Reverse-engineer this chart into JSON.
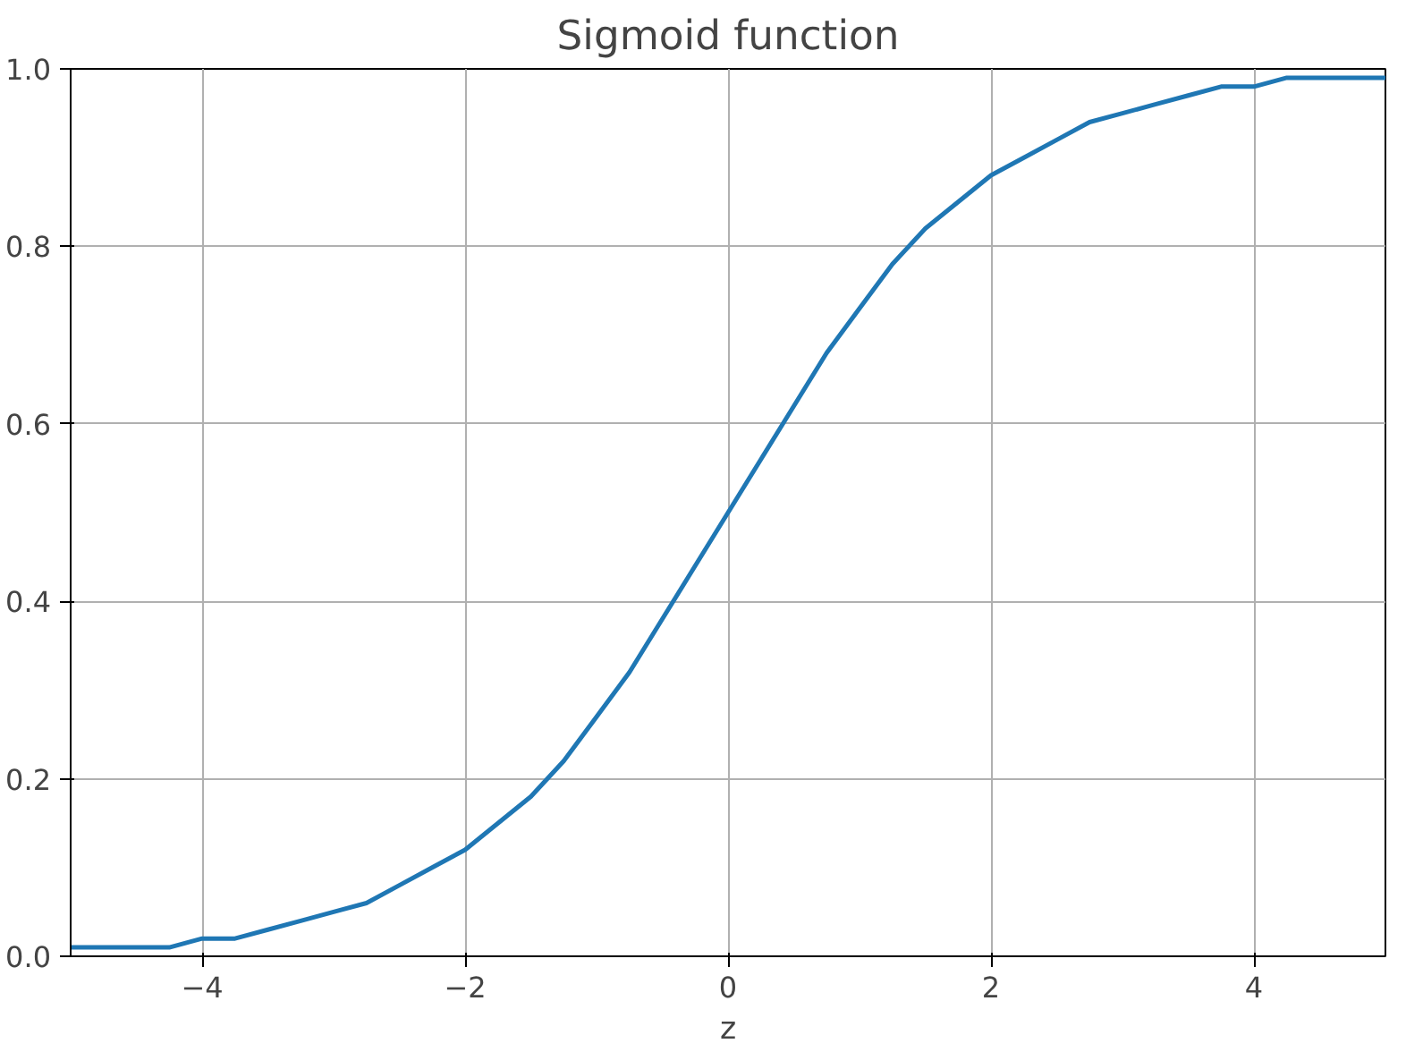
{
  "chart_data": {
    "type": "line",
    "title": "Sigmoid function",
    "xlabel": "z",
    "x": [
      -5,
      -4.75,
      -4.5,
      -4.25,
      -4,
      -3.75,
      -3.5,
      -3.25,
      -3,
      -2.75,
      -2.5,
      -2.25,
      -2,
      -1.75,
      -1.5,
      -1.25,
      -1,
      -0.75,
      -0.5,
      -0.25,
      0,
      0.25,
      0.5,
      0.75,
      1,
      1.25,
      1.5,
      1.75,
      2,
      2.25,
      2.5,
      2.75,
      3,
      3.25,
      3.5,
      3.75,
      4,
      4.25,
      4.5,
      4.75,
      5
    ],
    "series": [
      {
        "color": "#1f77b4",
        "values": [
          0.01,
          0.01,
          0.01,
          0.01,
          0.02,
          0.02,
          0.03,
          0.04,
          0.05,
          0.06,
          0.08,
          0.1,
          0.12,
          0.15,
          0.18,
          0.22,
          0.27,
          0.32,
          0.38,
          0.44,
          0.5,
          0.56,
          0.62,
          0.68,
          0.73,
          0.78,
          0.82,
          0.85,
          0.88,
          0.9,
          0.92,
          0.94,
          0.95,
          0.96,
          0.97,
          0.98,
          0.98,
          0.99,
          0.99,
          0.99,
          0.99
        ]
      }
    ],
    "xlim": [
      -5,
      5
    ],
    "ylim": [
      0,
      1
    ],
    "xticks": [
      {
        "value": -4,
        "label": "−4"
      },
      {
        "value": -2,
        "label": "−2"
      },
      0,
      2,
      4
    ],
    "yticks": [
      {
        "value": 0,
        "label": "0.0"
      },
      0.2,
      0.4,
      0.6,
      0.8,
      {
        "value": 1,
        "label": "1.0"
      }
    ],
    "grid": true,
    "line_style": "solid"
  }
}
